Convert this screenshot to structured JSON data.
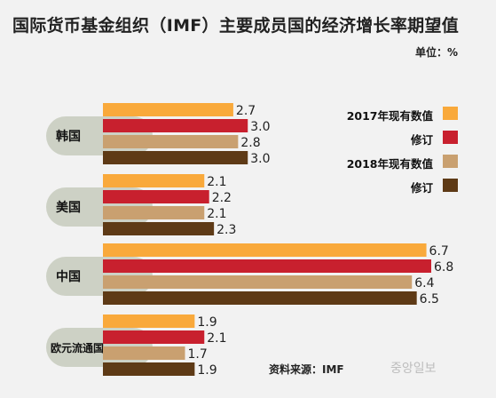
{
  "title": "国际货币基金组织（IMF）主要成员国的经济增长率期望值",
  "unit": "单位：%",
  "source": "资料来源：IMF",
  "watermark": "중앙일보",
  "colors": {
    "s2017": "#f9a93b",
    "s2017rev": "#c8202e",
    "s2018": "#c9a070",
    "s2018rev": "#5e3a16",
    "label_bg": "#cdd1c5"
  },
  "legend": {
    "items": [
      "2017年现有数值",
      "修订",
      "2018年现有数值",
      "修订"
    ]
  },
  "chart_data": {
    "type": "bar",
    "orientation": "horizontal",
    "categories": [
      "韩国",
      "美国",
      "中国",
      "欧元流通国"
    ],
    "series": [
      {
        "name": "2017年现有数值",
        "values": [
          2.7,
          2.1,
          6.7,
          1.9
        ]
      },
      {
        "name": "修订",
        "values": [
          3.0,
          2.2,
          6.8,
          2.1
        ]
      },
      {
        "name": "2018年现有数值",
        "values": [
          2.8,
          2.1,
          6.4,
          1.7
        ]
      },
      {
        "name": "修订",
        "values": [
          3.0,
          2.3,
          6.5,
          1.9
        ]
      }
    ],
    "value_labels": [
      [
        "2.7",
        "3.0",
        "2.8",
        "3.0"
      ],
      [
        "2.1",
        "2.2",
        "2.1",
        "2.3"
      ],
      [
        "6.7",
        "6.8",
        "6.4",
        "6.5"
      ],
      [
        "1.9",
        "2.1",
        "1.7",
        "1.9"
      ]
    ],
    "xlim": [
      0,
      6.8
    ],
    "legend_position": "right",
    "grid": false
  }
}
